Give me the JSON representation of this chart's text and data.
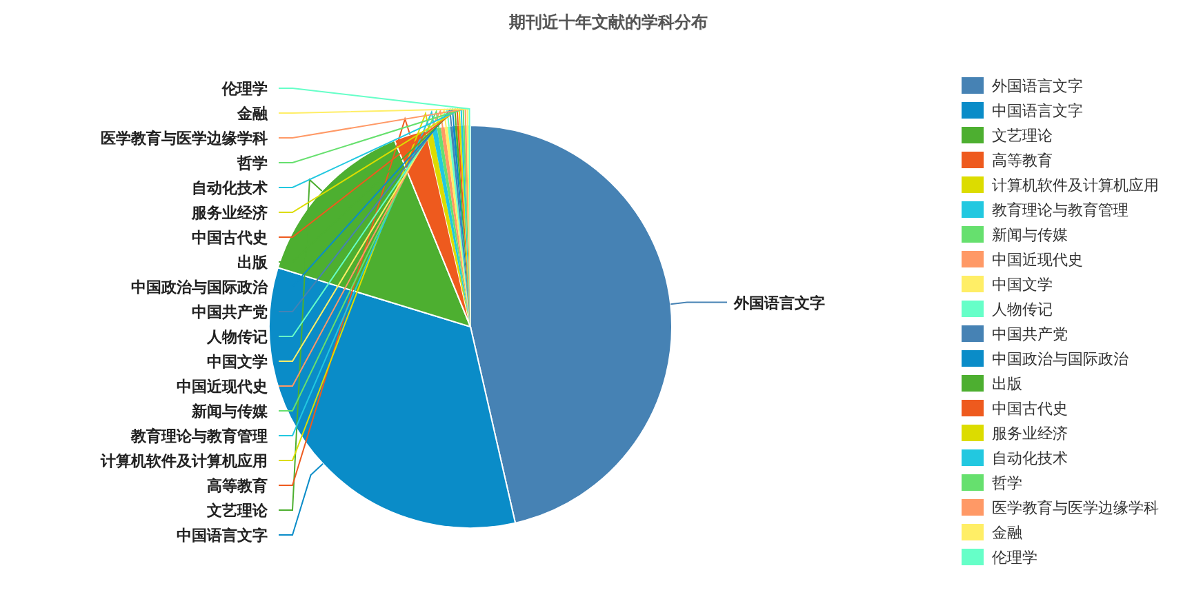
{
  "chart_data": {
    "type": "pie",
    "title": "期刊近十年文献的学科分布",
    "categories": [
      "外国语言文字",
      "中国语言文字",
      "文艺理论",
      "高等教育",
      "计算机软件及计算机应用",
      "教育理论与教育管理",
      "新闻与传媒",
      "中国近现代史",
      "中国文学",
      "人物传记",
      "中国共产党",
      "中国政治与国际政治",
      "出版",
      "中国古代史",
      "服务业经济",
      "自动化技术",
      "哲学",
      "医学教育与医学边缘学科",
      "金融",
      "伦理学"
    ],
    "values": [
      46.4,
      33.3,
      14.1,
      2.6,
      0.5,
      0.4,
      0.3,
      0.3,
      0.25,
      0.2,
      0.2,
      0.18,
      0.17,
      0.15,
      0.15,
      0.15,
      0.15,
      0.15,
      0.15,
      0.15
    ],
    "colors": [
      "#4682b4",
      "#0a8cc8",
      "#4daf30",
      "#ee5a1e",
      "#dcdc00",
      "#22c8e0",
      "#66e06e",
      "#ff9966",
      "#ffee66",
      "#66ffc8",
      "#4682b4",
      "#0a8cc8",
      "#4daf30",
      "#ee5a1e",
      "#dcdc00",
      "#22c8e0",
      "#66e06e",
      "#ff9966",
      "#ffee66",
      "#66ffc8"
    ],
    "legend": "right"
  }
}
